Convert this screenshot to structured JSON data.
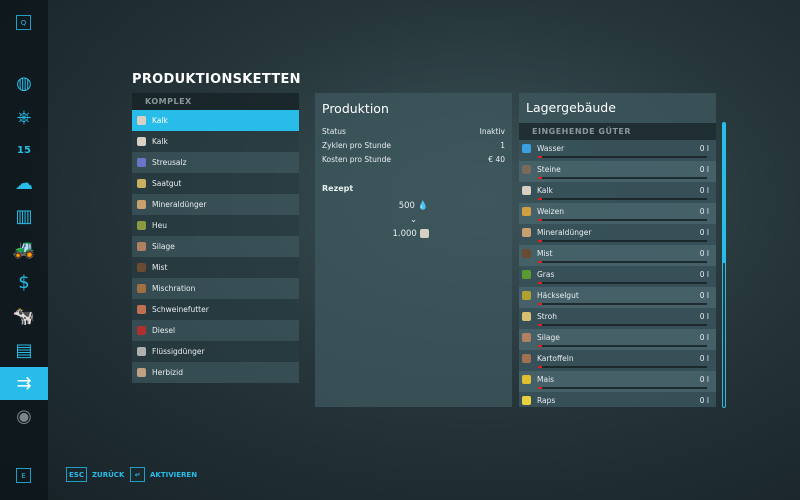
{
  "sidebar": {
    "top_key": "Q",
    "bottom_key": "E",
    "items": [
      {
        "icon": "map-icon",
        "glyph": "◍"
      },
      {
        "icon": "steering-wheel-icon",
        "glyph": "⎈"
      },
      {
        "icon": "calendar-icon",
        "glyph": "15"
      },
      {
        "icon": "weather-icon",
        "glyph": "☁"
      },
      {
        "icon": "statistics-icon",
        "glyph": "▥"
      },
      {
        "icon": "tractor-icon",
        "glyph": "🚜"
      },
      {
        "icon": "finances-icon",
        "glyph": "$"
      },
      {
        "icon": "animals-icon",
        "glyph": "🐄"
      },
      {
        "icon": "contracts-icon",
        "glyph": "▤"
      },
      {
        "icon": "production-icon",
        "glyph": "⇉"
      },
      {
        "icon": "tutorial-icon",
        "glyph": "◉"
      }
    ],
    "active_index": 9
  },
  "page_title": "PRODUKTIONSKETTEN",
  "list": {
    "header": "KOMPLEX",
    "items": [
      {
        "label": "Kalk",
        "color": "#d8d0c4"
      },
      {
        "label": "Kalk",
        "color": "#d8d0c4"
      },
      {
        "label": "Streusalz",
        "color": "#6a74c8"
      },
      {
        "label": "Saatgut",
        "color": "#c8b060"
      },
      {
        "label": "Mineraldünger",
        "color": "#c8a070"
      },
      {
        "label": "Heu",
        "color": "#8a9a40"
      },
      {
        "label": "Silage",
        "color": "#b08060"
      },
      {
        "label": "Mist",
        "color": "#6a4a30"
      },
      {
        "label": "Mischration",
        "color": "#a07040"
      },
      {
        "label": "Schweinefutter",
        "color": "#c07050"
      },
      {
        "label": "Diesel",
        "color": "#b03030"
      },
      {
        "label": "Flüssigdünger",
        "color": "#b0b0b0"
      },
      {
        "label": "Herbizid",
        "color": "#c0a080"
      }
    ],
    "selected_index": 0
  },
  "production": {
    "title": "Produktion",
    "status_label": "Status",
    "status_value": "Inaktiv",
    "cycles_label": "Zyklen pro Stunde",
    "cycles_value": "1",
    "costs_label": "Kosten pro Stunde",
    "costs_value": "€ 40",
    "recipe_label": "Rezept",
    "input_amount": "500",
    "input_icon": "water-icon",
    "arrow": "⌄",
    "output_amount": "1.000",
    "output_icon": "lime-icon"
  },
  "storage": {
    "title": "Lagergebäude",
    "section": "EINGEHENDE GÜTER",
    "fill_color": "#e02020",
    "items": [
      {
        "label": "Wasser",
        "value": "0 l",
        "fill": 0,
        "color": "#3aa0e0"
      },
      {
        "label": "Steine",
        "value": "0 l",
        "fill": 0,
        "color": "#7a6a5a"
      },
      {
        "label": "Kalk",
        "value": "0 l",
        "fill": 0,
        "color": "#d8d0c4"
      },
      {
        "label": "Weizen",
        "value": "0 l",
        "fill": 0,
        "color": "#d0a040"
      },
      {
        "label": "Mineraldünger",
        "value": "0 l",
        "fill": 0,
        "color": "#c8a070"
      },
      {
        "label": "Mist",
        "value": "0 l",
        "fill": 0,
        "color": "#6a4a30"
      },
      {
        "label": "Gras",
        "value": "0 l",
        "fill": 0,
        "color": "#5a9a30"
      },
      {
        "label": "Häckselgut",
        "value": "0 l",
        "fill": 0,
        "color": "#b0a030"
      },
      {
        "label": "Stroh",
        "value": "0 l",
        "fill": 0,
        "color": "#d8c070"
      },
      {
        "label": "Silage",
        "value": "0 l",
        "fill": 0,
        "color": "#b08060"
      },
      {
        "label": "Kartoffeln",
        "value": "0 l",
        "fill": 0,
        "color": "#a07050"
      },
      {
        "label": "Mais",
        "value": "0 l",
        "fill": 0,
        "color": "#e0c030"
      },
      {
        "label": "Raps",
        "value": "0 l",
        "fill": 0,
        "color": "#e8d040"
      }
    ]
  },
  "footer": {
    "back_key": "ESC",
    "back_label": "ZURÜCK",
    "activate_key": "↵",
    "activate_label": "AKTIVIEREN"
  },
  "accent": "#27bde8"
}
